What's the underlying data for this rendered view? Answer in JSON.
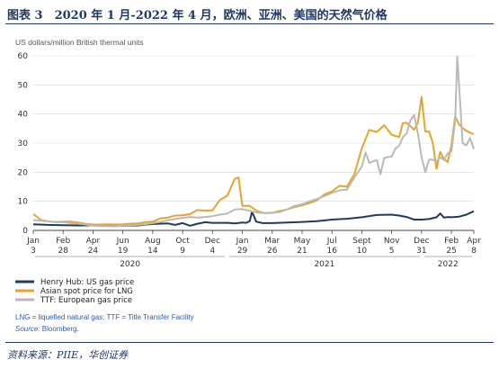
{
  "header": {
    "title": "图表 3　2020 年 1 月-2022 年 4 月，欧洲、亚洲、美国的天然气价格"
  },
  "footer": {
    "source": "资料来源：PIIE，华创证券"
  },
  "chart_data": {
    "type": "line",
    "ylabel": "US dollars/million British thermal units",
    "ylim": [
      0,
      60
    ],
    "yticks": [
      0,
      10,
      20,
      30,
      40,
      50,
      60
    ],
    "grid": true,
    "xticks": [
      {
        "m": "Jan",
        "d": "3",
        "t": 0
      },
      {
        "m": "Feb",
        "d": "28",
        "t": 56
      },
      {
        "m": "Apr",
        "d": "24",
        "t": 112
      },
      {
        "m": "Jun",
        "d": "19",
        "t": 168
      },
      {
        "m": "Aug",
        "d": "14",
        "t": 224
      },
      {
        "m": "Oct",
        "d": "9",
        "t": 280
      },
      {
        "m": "Dec",
        "d": "4",
        "t": 336
      },
      {
        "m": "Jan",
        "d": "29",
        "t": 392
      },
      {
        "m": "Mar",
        "d": "26",
        "t": 448
      },
      {
        "m": "May",
        "d": "21",
        "t": 504
      },
      {
        "m": "Jul",
        "d": "16",
        "t": 560
      },
      {
        "m": "Sept",
        "d": "10",
        "t": 616
      },
      {
        "m": "Nov",
        "d": "5",
        "t": 672
      },
      {
        "m": "Dec",
        "d": "31",
        "t": 728
      },
      {
        "m": "Feb",
        "d": "25",
        "t": 784
      },
      {
        "m": "Apr",
        "d": "8",
        "t": 826
      }
    ],
    "years": [
      {
        "label": "2020",
        "t_from": 0,
        "t_to": 363
      },
      {
        "label": "2021",
        "t_from": 364,
        "t_to": 728
      },
      {
        "label": "2022",
        "t_from": 729,
        "t_to": 826
      }
    ],
    "series": [
      {
        "name": "Henry Hub: US gas price",
        "color": "#1f3b5e",
        "points": [
          [
            0,
            2.1
          ],
          [
            28,
            1.9
          ],
          [
            56,
            1.8
          ],
          [
            84,
            1.7
          ],
          [
            112,
            1.7
          ],
          [
            140,
            1.6
          ],
          [
            168,
            1.6
          ],
          [
            196,
            1.7
          ],
          [
            224,
            2.2
          ],
          [
            252,
            2.4
          ],
          [
            266,
            1.9
          ],
          [
            280,
            2.5
          ],
          [
            294,
            1.6
          ],
          [
            308,
            2.3
          ],
          [
            322,
            2.8
          ],
          [
            336,
            2.6
          ],
          [
            364,
            2.6
          ],
          [
            378,
            2.4
          ],
          [
            392,
            2.7
          ],
          [
            399,
            2.6
          ],
          [
            406,
            3.2
          ],
          [
            410,
            6.3
          ],
          [
            413,
            5.2
          ],
          [
            418,
            3.0
          ],
          [
            430,
            2.5
          ],
          [
            448,
            2.5
          ],
          [
            476,
            2.7
          ],
          [
            504,
            2.9
          ],
          [
            532,
            3.2
          ],
          [
            560,
            3.7
          ],
          [
            588,
            4.0
          ],
          [
            616,
            4.5
          ],
          [
            644,
            5.3
          ],
          [
            672,
            5.4
          ],
          [
            686,
            5.1
          ],
          [
            700,
            4.6
          ],
          [
            714,
            3.7
          ],
          [
            728,
            3.7
          ],
          [
            742,
            3.9
          ],
          [
            756,
            4.5
          ],
          [
            763,
            5.8
          ],
          [
            770,
            4.4
          ],
          [
            778,
            4.6
          ],
          [
            784,
            4.5
          ],
          [
            798,
            4.7
          ],
          [
            812,
            5.4
          ],
          [
            826,
            6.6
          ]
        ]
      },
      {
        "name": "Asian spot price for LNG",
        "color": "#e6a42d",
        "points": [
          [
            0,
            5.6
          ],
          [
            6,
            4.8
          ],
          [
            14,
            3.6
          ],
          [
            28,
            3.1
          ],
          [
            42,
            2.9
          ],
          [
            56,
            3.0
          ],
          [
            70,
            3.0
          ],
          [
            84,
            2.7
          ],
          [
            98,
            2.3
          ],
          [
            112,
            2.0
          ],
          [
            126,
            2.0
          ],
          [
            140,
            2.1
          ],
          [
            154,
            2.0
          ],
          [
            168,
            2.1
          ],
          [
            182,
            2.3
          ],
          [
            196,
            2.4
          ],
          [
            210,
            2.8
          ],
          [
            224,
            3.0
          ],
          [
            238,
            4.1
          ],
          [
            252,
            4.4
          ],
          [
            266,
            5.1
          ],
          [
            280,
            5.2
          ],
          [
            294,
            5.6
          ],
          [
            308,
            7.0
          ],
          [
            322,
            6.8
          ],
          [
            336,
            6.9
          ],
          [
            350,
            10.5
          ],
          [
            357,
            11.2
          ],
          [
            364,
            12.0
          ],
          [
            378,
            17.8
          ],
          [
            385,
            18.2
          ],
          [
            392,
            8.4
          ],
          [
            406,
            8.4
          ],
          [
            420,
            6.6
          ],
          [
            434,
            5.9
          ],
          [
            448,
            6.0
          ],
          [
            462,
            6.7
          ],
          [
            476,
            7.2
          ],
          [
            490,
            8.0
          ],
          [
            504,
            8.6
          ],
          [
            518,
            9.4
          ],
          [
            532,
            10.4
          ],
          [
            546,
            12.4
          ],
          [
            560,
            13.4
          ],
          [
            574,
            15.3
          ],
          [
            588,
            15.0
          ],
          [
            602,
            19.3
          ],
          [
            616,
            28.2
          ],
          [
            630,
            34.5
          ],
          [
            644,
            33.8
          ],
          [
            658,
            36.2
          ],
          [
            672,
            32.8
          ],
          [
            686,
            32.1
          ],
          [
            693,
            36.9
          ],
          [
            700,
            37.0
          ],
          [
            707,
            35.8
          ],
          [
            714,
            34.6
          ],
          [
            721,
            37.0
          ],
          [
            728,
            45.9
          ],
          [
            735,
            34.0
          ],
          [
            742,
            34.0
          ],
          [
            749,
            30.1
          ],
          [
            756,
            21.2
          ],
          [
            763,
            27.0
          ],
          [
            770,
            24.5
          ],
          [
            777,
            23.5
          ],
          [
            784,
            29.3
          ],
          [
            791,
            39.1
          ],
          [
            798,
            36.5
          ],
          [
            805,
            35.2
          ],
          [
            812,
            34.2
          ],
          [
            819,
            33.6
          ],
          [
            826,
            33.1
          ]
        ]
      },
      {
        "name": "TTF: European gas price",
        "color": "#b9b9b9",
        "points": [
          [
            0,
            3.6
          ],
          [
            14,
            3.3
          ],
          [
            28,
            3.1
          ],
          [
            42,
            2.8
          ],
          [
            56,
            2.8
          ],
          [
            70,
            2.5
          ],
          [
            84,
            2.3
          ],
          [
            98,
            2.0
          ],
          [
            112,
            1.6
          ],
          [
            126,
            1.5
          ],
          [
            140,
            1.5
          ],
          [
            154,
            1.4
          ],
          [
            168,
            1.7
          ],
          [
            182,
            1.8
          ],
          [
            196,
            1.9
          ],
          [
            210,
            2.1
          ],
          [
            224,
            2.5
          ],
          [
            238,
            2.9
          ],
          [
            252,
            3.5
          ],
          [
            266,
            3.9
          ],
          [
            280,
            4.3
          ],
          [
            294,
            4.6
          ],
          [
            308,
            4.4
          ],
          [
            322,
            4.6
          ],
          [
            336,
            4.9
          ],
          [
            350,
            5.4
          ],
          [
            364,
            5.8
          ],
          [
            378,
            7.2
          ],
          [
            392,
            7.3
          ],
          [
            406,
            6.7
          ],
          [
            420,
            6.1
          ],
          [
            434,
            6.0
          ],
          [
            448,
            6.1
          ],
          [
            462,
            6.3
          ],
          [
            476,
            7.2
          ],
          [
            490,
            8.4
          ],
          [
            504,
            9.0
          ],
          [
            518,
            10.0
          ],
          [
            532,
            10.8
          ],
          [
            546,
            11.8
          ],
          [
            560,
            12.9
          ],
          [
            574,
            13.8
          ],
          [
            588,
            14.0
          ],
          [
            602,
            18.2
          ],
          [
            616,
            21.9
          ],
          [
            623,
            26.8
          ],
          [
            630,
            23.2
          ],
          [
            644,
            24.2
          ],
          [
            651,
            19.3
          ],
          [
            658,
            24.9
          ],
          [
            672,
            25.4
          ],
          [
            679,
            28.1
          ],
          [
            686,
            29.1
          ],
          [
            693,
            32.0
          ],
          [
            700,
            33.4
          ],
          [
            707,
            37.8
          ],
          [
            714,
            39.6
          ],
          [
            721,
            33.5
          ],
          [
            728,
            25.2
          ],
          [
            735,
            20.0
          ],
          [
            742,
            24.3
          ],
          [
            749,
            24.3
          ],
          [
            756,
            23.6
          ],
          [
            763,
            25.1
          ],
          [
            770,
            24.2
          ],
          [
            777,
            26.5
          ],
          [
            784,
            27.2
          ],
          [
            791,
            37.5
          ],
          [
            795,
            59.7
          ],
          [
            800,
            45.0
          ],
          [
            805,
            30.0
          ],
          [
            812,
            29.2
          ],
          [
            819,
            31.8
          ],
          [
            826,
            28.0
          ]
        ]
      }
    ],
    "notes": {
      "definitions": "LNG = liquefied natural gas; TTF = Title Transfer Facility",
      "source_label": "Source:",
      "source_value": " Bloomberg."
    }
  }
}
